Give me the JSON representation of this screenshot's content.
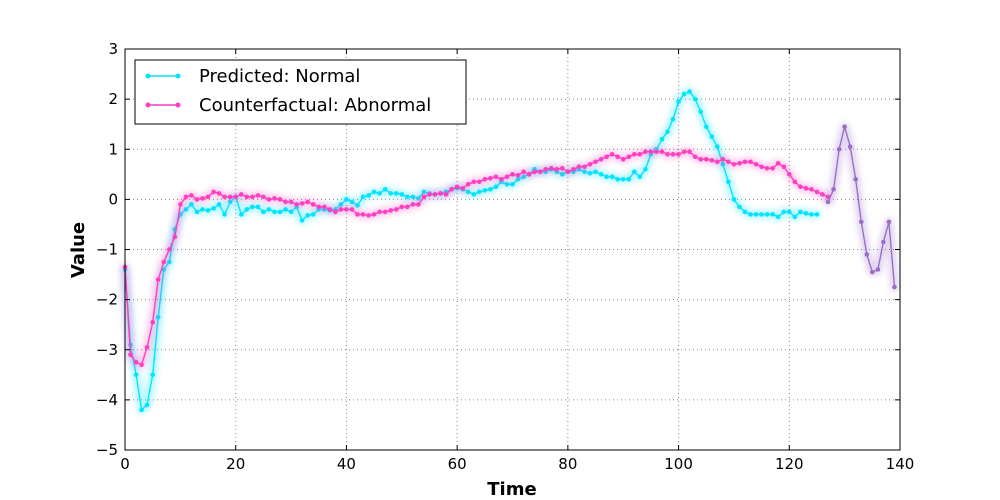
{
  "chart_data": {
    "type": "line",
    "title": "",
    "xlabel": "Time",
    "ylabel": "Value",
    "xlim": [
      0,
      140
    ],
    "ylim": [
      -5,
      3
    ],
    "xticks": [
      0,
      20,
      40,
      60,
      80,
      100,
      120,
      140
    ],
    "yticks": [
      -5,
      -4,
      -3,
      -2,
      -1,
      0,
      1,
      2,
      3
    ],
    "grid": true,
    "legend_position": "top-left",
    "colors": {
      "normal": "#00e5ff",
      "abnormal": "#ff3fbf",
      "shared": "#9b6fc8"
    },
    "series": [
      {
        "name": "Predicted: Normal",
        "x_start": 0,
        "values": [
          -1.4,
          -2.9,
          -3.5,
          -4.2,
          -4.1,
          -3.5,
          -2.35,
          -1.4,
          -1.25,
          -0.6,
          -0.3,
          -0.2,
          -0.1,
          -0.25,
          -0.2,
          -0.22,
          -0.18,
          -0.1,
          -0.3,
          -0.05,
          0.05,
          -0.3,
          -0.2,
          -0.15,
          -0.15,
          -0.25,
          -0.2,
          -0.25,
          -0.25,
          -0.2,
          -0.25,
          -0.15,
          -0.42,
          -0.32,
          -0.3,
          -0.2,
          -0.2,
          -0.22,
          -0.2,
          -0.1,
          0.0,
          -0.05,
          -0.12,
          0.05,
          0.08,
          0.15,
          0.12,
          0.2,
          0.12,
          0.12,
          0.1,
          0.05,
          0.05,
          0.02,
          0.15,
          0.12,
          0.1,
          0.12,
          0.15,
          0.2,
          0.22,
          0.2,
          0.15,
          0.1,
          0.15,
          0.18,
          0.2,
          0.25,
          0.35,
          0.3,
          0.3,
          0.4,
          0.45,
          0.5,
          0.6,
          0.55,
          0.55,
          0.6,
          0.55,
          0.5,
          0.55,
          0.55,
          0.6,
          0.55,
          0.52,
          0.55,
          0.5,
          0.45,
          0.45,
          0.4,
          0.4,
          0.4,
          0.55,
          0.45,
          0.6,
          0.9,
          1.0,
          1.2,
          1.35,
          1.6,
          1.95,
          2.1,
          2.15,
          2.0,
          1.75,
          1.45,
          1.25,
          1.05,
          0.7,
          0.35,
          0.0,
          -0.15,
          -0.25,
          -0.3,
          -0.3,
          -0.3,
          -0.3,
          -0.3,
          -0.35,
          -0.25,
          -0.25,
          -0.35,
          -0.25,
          -0.28,
          -0.3,
          -0.3
        ]
      },
      {
        "name": "Counterfactual: Abnormal",
        "x_start": 0,
        "values": [
          -1.35,
          -3.1,
          -3.25,
          -3.3,
          -2.95,
          -2.45,
          -1.6,
          -1.25,
          -1.0,
          -0.75,
          -0.1,
          0.05,
          0.08,
          0.0,
          0.02,
          0.05,
          0.15,
          0.12,
          0.05,
          0.05,
          0.05,
          0.1,
          0.05,
          0.05,
          0.08,
          0.05,
          0.0,
          0.02,
          0.0,
          -0.05,
          -0.05,
          -0.1,
          -0.08,
          -0.05,
          -0.1,
          -0.15,
          -0.15,
          -0.2,
          -0.25,
          -0.2,
          -0.2,
          -0.2,
          -0.3,
          -0.3,
          -0.32,
          -0.3,
          -0.25,
          -0.25,
          -0.22,
          -0.2,
          -0.15,
          -0.15,
          -0.1,
          -0.1,
          0.05,
          0.1,
          0.1,
          0.12,
          0.1,
          0.2,
          0.25,
          0.22,
          0.3,
          0.35,
          0.35,
          0.4,
          0.42,
          0.45,
          0.4,
          0.45,
          0.5,
          0.48,
          0.55,
          0.5,
          0.55,
          0.55,
          0.6,
          0.62,
          0.6,
          0.62,
          0.55,
          0.6,
          0.65,
          0.65,
          0.7,
          0.75,
          0.8,
          0.85,
          0.9,
          0.85,
          0.8,
          0.85,
          0.9,
          0.9,
          0.95,
          0.95,
          0.95,
          0.95,
          0.9,
          0.9,
          0.9,
          0.95,
          0.95,
          0.85,
          0.8,
          0.8,
          0.78,
          0.75,
          0.8,
          0.75,
          0.7,
          0.72,
          0.75,
          0.75,
          0.7,
          0.65,
          0.62,
          0.62,
          0.72,
          0.65,
          0.5,
          0.35,
          0.25,
          0.22,
          0.2,
          0.15,
          0.1,
          0.05
        ]
      },
      {
        "name": "",
        "x_start": 127,
        "values": [
          -0.05,
          0.2,
          1.0,
          1.45,
          1.05,
          0.4,
          -0.45,
          -1.1,
          -1.45,
          -1.4,
          -0.85,
          -0.45,
          -1.75
        ]
      }
    ]
  }
}
